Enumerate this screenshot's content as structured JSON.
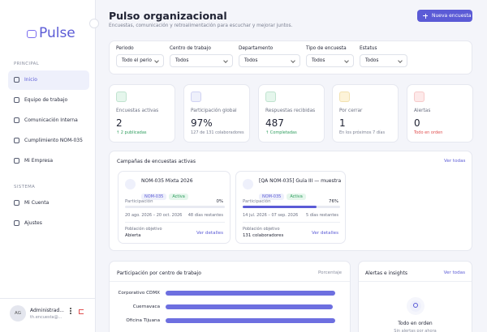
{
  "sidebar": {
    "logo": "Pulse",
    "sections": [
      {
        "title": "PRINCIPAL",
        "items": [
          "Inicio",
          "Equipo de trabajo",
          "Comunicación Interna",
          "Cumplimiento NOM-035",
          "Mi Empresa"
        ]
      },
      {
        "title": "SISTEMA",
        "items": [
          "Mi Cuenta",
          "Ajustes"
        ]
      }
    ],
    "user": {
      "initials": "AG",
      "name": "Administrad...",
      "email": "th.encuesta@..."
    }
  },
  "header": {
    "title": "Pulso organizacional",
    "subtitle": "Encuestas, comunicación y retroalimentación para escuchar y mejorar juntos.",
    "button": "Nueva encuesta"
  },
  "filters": [
    {
      "label": "Periodo",
      "value": "Todo el perio"
    },
    {
      "label": "Centro de trabajo",
      "value": "Todos"
    },
    {
      "label": "Departamento",
      "value": "Todos"
    },
    {
      "label": "Tipo de encuesta",
      "value": "Todos"
    },
    {
      "label": "Estatus",
      "value": "Todos"
    }
  ],
  "stats": [
    {
      "label": "Encuestas activas",
      "value": "2",
      "note": "↑ 2 publicadas"
    },
    {
      "label": "Participación global",
      "value": "97%",
      "note": "127 de 131 colaboradores"
    },
    {
      "label": "Respuestas recibidas",
      "value": "487",
      "note": "↑ Completadas"
    },
    {
      "label": "Por cerrar",
      "value": "1",
      "note": "En los próximos 7 días"
    },
    {
      "label": "Alertas",
      "value": "0",
      "note": "Todo en orden"
    }
  ],
  "campaigns": {
    "title": "Campañas de encuestas activas",
    "link": "Ver todas",
    "items": [
      {
        "name": "NOM-035 Mixta 2026",
        "tags": [
          "NOM-035",
          "Activa"
        ],
        "progress_title": "Participación",
        "progress": {
          "value": 0,
          "label": "0%"
        },
        "dates": "20 ago. 2026 – 20 oct. 2026",
        "remaining": "48 días restantes",
        "target_title": "Población objetivo",
        "target": "Abierta",
        "link": "Ver detalles"
      },
      {
        "name": "[QA NOM-035] Guía III — muestra ...",
        "tags": [
          "NOM-035",
          "Activa"
        ],
        "progress_title": "Participación",
        "progress": {
          "value": 76,
          "label": "76%"
        },
        "dates": "14 jul. 2026 – 07 sep. 2026",
        "remaining": "5 días restantes",
        "target_title": "Población objetivo",
        "target": "131 colaboradores",
        "link": "Ver detalles"
      }
    ]
  },
  "centers": {
    "title": "Participación por centro de trabajo",
    "unit": "Porcentaje",
    "categories": [
      "Corporativo CDMX",
      "Cuernavaca",
      "Oficina Tijuana"
    ],
    "values": [
      97,
      96,
      97
    ],
    "xlim": [
      0,
      100
    ]
  },
  "alerts": {
    "title": "Alertas e insights",
    "link": "Ver todas",
    "status": "Todo en orden",
    "note": "Sin alertas por ahora"
  }
}
